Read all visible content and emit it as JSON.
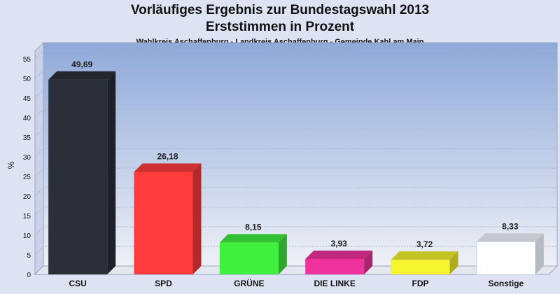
{
  "chart_data": {
    "type": "bar",
    "title": "Vorläufiges Ergebnis zur Bundestagswahl 2013",
    "subtitle": "Erststimmen in Prozent",
    "subsubtitle": "Wahlkreis Aschaffenburg - Landkreis Aschaffenburg - Gemeinde Kahl am Main",
    "ylabel": "%",
    "xlabel": "",
    "ylim": [
      0,
      57
    ],
    "yticks": [
      0,
      5,
      10,
      15,
      20,
      25,
      30,
      35,
      40,
      45,
      50,
      55
    ],
    "categories": [
      "CSU",
      "SPD",
      "GRÜNE",
      "DIE LINKE",
      "FDP",
      "Sonstige"
    ],
    "values": [
      49.69,
      26.18,
      8.15,
      3.93,
      3.72,
      8.33
    ],
    "value_labels": [
      "49,69",
      "26,18",
      "8,15",
      "3,93",
      "3,72",
      "8,33"
    ],
    "colors": [
      "#2b2f3a",
      "#ff3b3b",
      "#3ff03f",
      "#f0339c",
      "#f5f52e",
      "#ffffff"
    ],
    "grid": true,
    "legend": "none"
  }
}
